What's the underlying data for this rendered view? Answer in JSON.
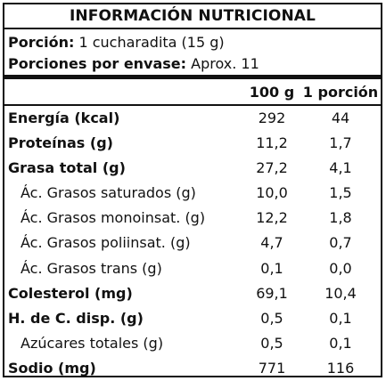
{
  "title": "INFORMACIÓN NUTRICIONAL",
  "portion": {
    "label": "Porción:",
    "value": "1 cucharadita (15 g)"
  },
  "servings": {
    "label": "Porciones por envase:",
    "value": "Aprox. 11"
  },
  "columns": {
    "per100": "100 g",
    "perPortion": "1 porción"
  },
  "rows": [
    {
      "label": "Energía (kcal)",
      "per100": "292",
      "perPortion": "44"
    },
    {
      "label": "Proteínas (g)",
      "per100": "11,2",
      "perPortion": "1,7"
    },
    {
      "label": "Grasa total (g)",
      "per100": "27,2",
      "perPortion": "4,1"
    },
    {
      "label": "Ác. Grasos saturados (g)",
      "per100": "10,0",
      "perPortion": "1,5"
    },
    {
      "label": "Ác. Grasos monoinsat. (g)",
      "per100": "12,2",
      "perPortion": "1,8"
    },
    {
      "label": "Ác. Grasos poliinsat. (g)",
      "per100": "4,7",
      "perPortion": "0,7"
    },
    {
      "label": "Ác. Grasos trans (g)",
      "per100": "0,1",
      "perPortion": "0,0"
    },
    {
      "label": "Colesterol (mg)",
      "per100": "69,1",
      "perPortion": "10,4"
    },
    {
      "label": "H. de C. disp. (g)",
      "per100": "0,5",
      "perPortion": "0,1"
    },
    {
      "label": "Azúcares totales (g)",
      "per100": "0,5",
      "perPortion": "0,1"
    },
    {
      "label": "Sodio (mg)",
      "per100": "771",
      "perPortion": "116"
    }
  ]
}
